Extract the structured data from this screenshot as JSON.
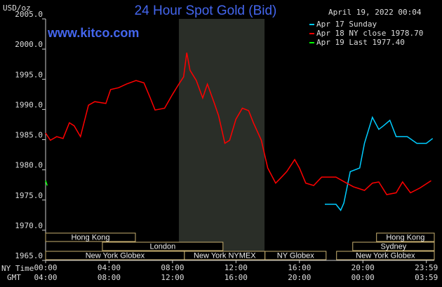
{
  "chart_data": {
    "type": "line",
    "title": "24 Hour Spot Gold (Bid)",
    "timestamp": "April 19, 2022 00:04",
    "watermark": "www.kitco.com",
    "y_label": "USD/oz",
    "x_label": "NY Time",
    "x2_label": "GMT",
    "xlim": [
      0,
      24.5
    ],
    "ylim": [
      1965,
      2005
    ],
    "yticks": [
      {
        "value": 1965,
        "label": "1965.0"
      },
      {
        "value": 1970,
        "label": "1970.0"
      },
      {
        "value": 1975,
        "label": "1975.0"
      },
      {
        "value": 1980,
        "label": "1980.0"
      },
      {
        "value": 1985,
        "label": "1985.0"
      },
      {
        "value": 1990,
        "label": "1990.0"
      },
      {
        "value": 1995,
        "label": "1995.0"
      },
      {
        "value": 2000,
        "label": "2000.0"
      },
      {
        "value": 2005,
        "label": "2005.0"
      }
    ],
    "xticks": [
      {
        "value": 0,
        "label": "00:00"
      },
      {
        "value": 4,
        "label": "04:00"
      },
      {
        "value": 8,
        "label": "08:00"
      },
      {
        "value": 12,
        "label": "12:00"
      },
      {
        "value": 16,
        "label": "16:00"
      },
      {
        "value": 20,
        "label": "20:00"
      },
      {
        "value": 24,
        "label": "23:59"
      }
    ],
    "x2ticks": [
      {
        "value": 0,
        "label": "04:00"
      },
      {
        "value": 4,
        "label": "08:00"
      },
      {
        "value": 8,
        "label": "12:00"
      },
      {
        "value": 12,
        "label": "16:00"
      },
      {
        "value": 16,
        "label": "20:00"
      },
      {
        "value": 20,
        "label": "00:00"
      },
      {
        "value": 24,
        "label": "03:59"
      }
    ],
    "grid": false,
    "shaded": [
      8.4,
      13.8
    ],
    "session_rows": [
      [
        {
          "name": "Hong Kong",
          "start": 0,
          "end": 5.66
        },
        {
          "name": "Hong Kong",
          "start": 20.86,
          "end": 24.5
        }
      ],
      [
        {
          "name": "London",
          "start": 3.58,
          "end": 11.18
        },
        {
          "name": "Sydney",
          "start": 19.36,
          "end": 24.5
        }
      ],
      [
        {
          "name": "New York Globex",
          "start": 0,
          "end": 8.75
        },
        {
          "name": "New York NYMEX",
          "start": 8.75,
          "end": 13.83
        },
        {
          "name": "NY Globex",
          "start": 13.83,
          "end": 17.68
        },
        {
          "name": "New York Globex",
          "start": 18.34,
          "end": 24.5
        }
      ]
    ],
    "series": [
      {
        "name": "Apr 17 Sunday",
        "color": "#00ccff",
        "x": [
          17.6,
          18.3,
          18.6,
          18.8,
          19.2,
          19.8,
          20.1,
          20.6,
          21.0,
          21.3,
          21.7,
          22.1,
          22.8,
          23.4,
          24.0,
          24.4
        ],
        "values": [
          1974.3,
          1974.3,
          1973.3,
          1974.5,
          1979.7,
          1980.3,
          1984.4,
          1988.7,
          1986.7,
          1987.3,
          1988.2,
          1985.5,
          1985.5,
          1984.4,
          1984.4,
          1985.2
        ]
      },
      {
        "name": "Apr 18 NY close 1978.70",
        "color": "#ff0000",
        "x": [
          0,
          0.3,
          0.7,
          1.1,
          1.5,
          1.8,
          2.2,
          2.7,
          3.1,
          3.8,
          4.1,
          4.6,
          5.1,
          5.7,
          6.2,
          6.6,
          6.9,
          7.5,
          8.0,
          8.4,
          8.7,
          8.9,
          9.1,
          9.5,
          9.9,
          10.2,
          10.6,
          10.9,
          11.3,
          11.6,
          12.0,
          12.4,
          12.8,
          13.1,
          13.6,
          14.0,
          14.5,
          14.8,
          15.2,
          15.7,
          16.0,
          16.4,
          16.9,
          17.4,
          18.3,
          18.9,
          19.4,
          20.1,
          20.6,
          21.0,
          21.5,
          22.1,
          22.5,
          23.0,
          23.6,
          24.3
        ],
        "values": [
          1986.1,
          1984.9,
          1985.5,
          1985.2,
          1987.8,
          1987.3,
          1985.5,
          1990.7,
          1991.3,
          1991.0,
          1993.3,
          1993.6,
          1994.2,
          1994.8,
          1994.4,
          1991.9,
          1989.9,
          1990.2,
          1992.5,
          1994.2,
          1995.4,
          1999.4,
          1996.5,
          1994.8,
          1991.9,
          1994.2,
          1991.3,
          1989.0,
          1984.4,
          1984.9,
          1988.4,
          1990.2,
          1989.8,
          1987.8,
          1984.9,
          1980.3,
          1977.8,
          1978.6,
          1979.7,
          1981.7,
          1980.3,
          1977.8,
          1977.4,
          1978.8,
          1978.8,
          1977.9,
          1977.2,
          1976.6,
          1977.8,
          1978.0,
          1975.9,
          1976.2,
          1978.0,
          1976.2,
          1977.0,
          1978.2
        ]
      },
      {
        "name": "Apr 19 Last 1977.40",
        "color": "#00ff00",
        "x": [
          0,
          0.1
        ],
        "values": [
          1978.2,
          1977.4
        ]
      }
    ]
  }
}
